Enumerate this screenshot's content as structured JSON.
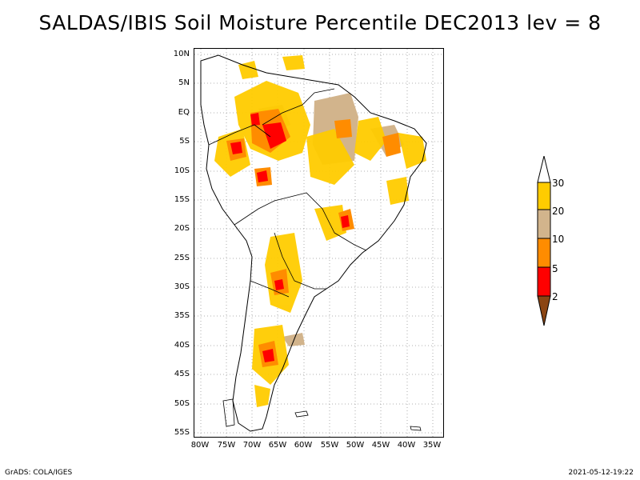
{
  "title": "SALDAS/IBIS Soil Moisture Percentile DEC2013 lev = 8",
  "footer": {
    "left": "GrADS: COLA/IGES",
    "right": "2021-05-12-19:22"
  },
  "map": {
    "lat_ticks": [
      "10N",
      "5N",
      "EQ",
      "5S",
      "10S",
      "15S",
      "20S",
      "25S",
      "30S",
      "35S",
      "40S",
      "45S",
      "50S",
      "55S"
    ],
    "lon_ticks": [
      "80W",
      "75W",
      "70W",
      "65W",
      "60W",
      "55W",
      "50W",
      "45W",
      "40W",
      "35W"
    ],
    "grid": true,
    "grid_style": "dotted"
  },
  "legend": {
    "labels": [
      "30",
      "20",
      "10",
      "5",
      "2"
    ],
    "colors": {
      "gt30": "#ffffff",
      "20_30": "#ffcc00",
      "10_20": "#d2b48c",
      "5_10": "#ff8c00",
      "2_5": "#ff0000",
      "lt2": "#8b4513"
    }
  }
}
